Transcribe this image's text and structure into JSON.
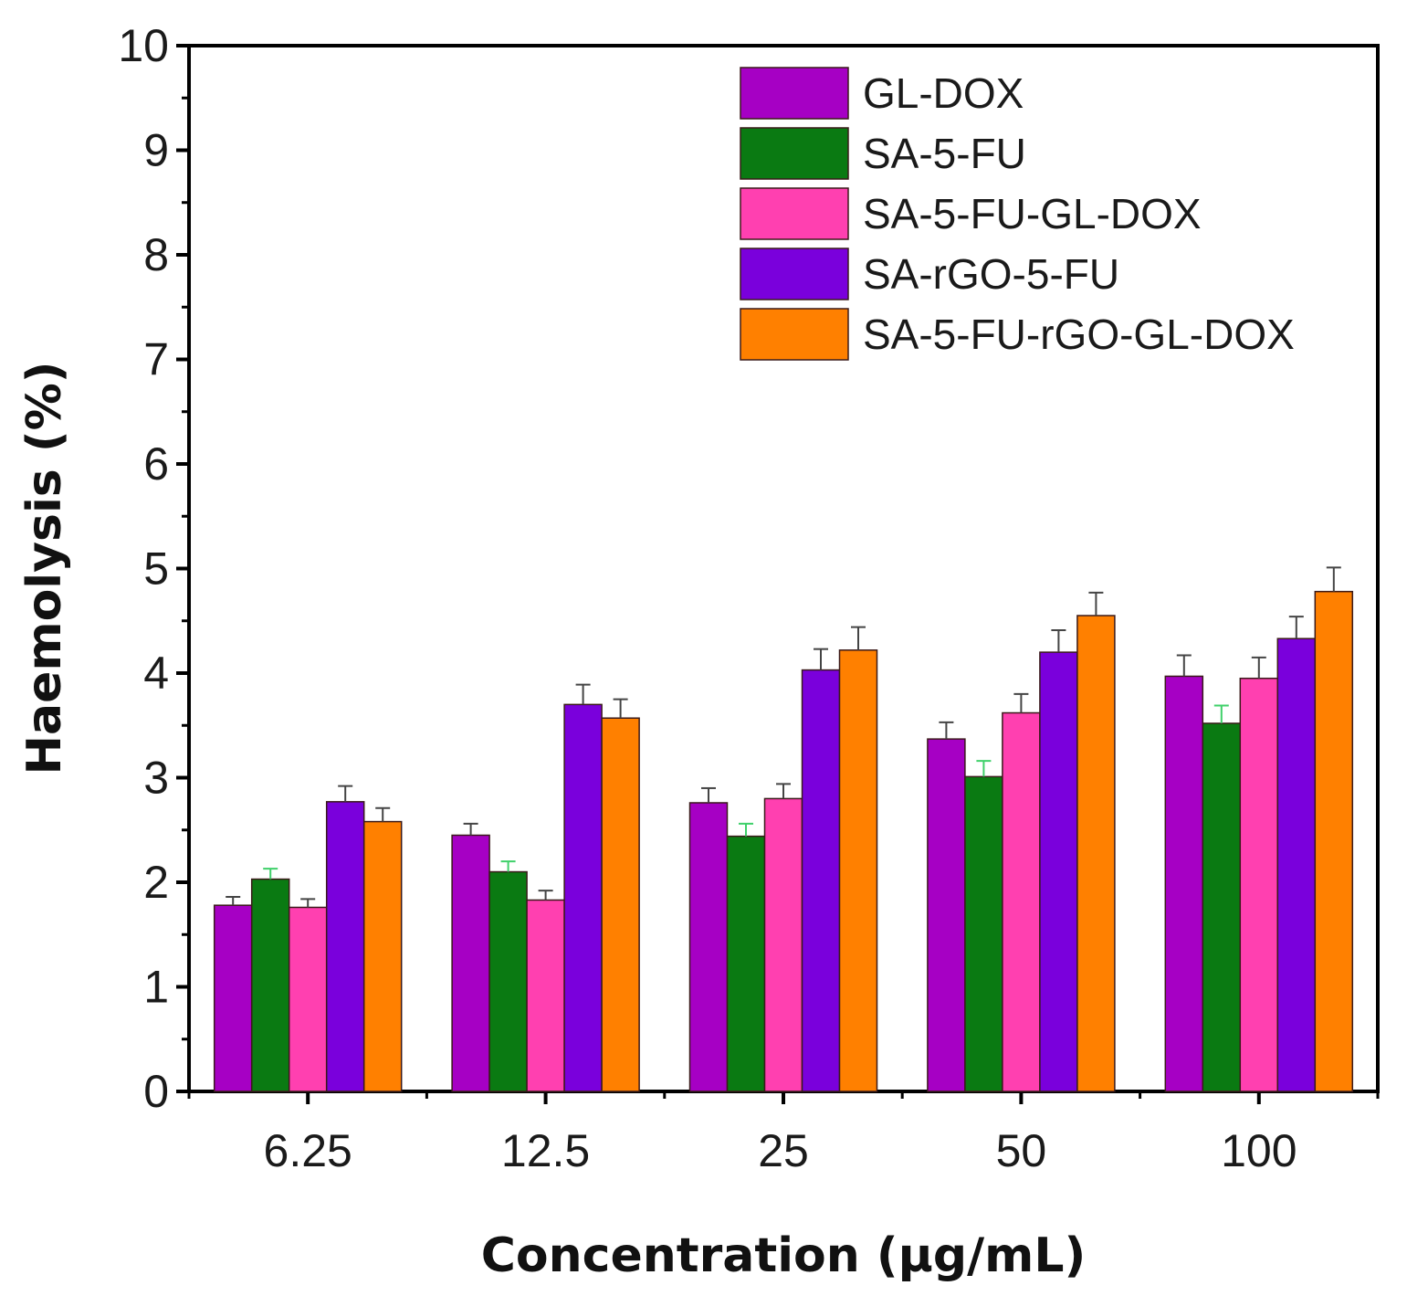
{
  "chart_data": {
    "type": "bar",
    "title": "",
    "xlabel": "Concentration (μg/mL)",
    "ylabel": "Haemolysis (%)",
    "ylim": [
      0,
      10
    ],
    "yticks": [
      "0",
      "1",
      "2",
      "3",
      "4",
      "5",
      "6",
      "7",
      "8",
      "9",
      "10"
    ],
    "categories": [
      "6.25",
      "12.5",
      "25",
      "50",
      "100"
    ],
    "legend_position": "top-right",
    "series": [
      {
        "name": "GL-DOX",
        "color": "#a600c4",
        "values": [
          1.78,
          2.45,
          2.76,
          3.37,
          3.97
        ],
        "errors": [
          0.08,
          0.11,
          0.14,
          0.16,
          0.2
        ]
      },
      {
        "name": "SA-5-FU",
        "color": "#0a7a12",
        "values": [
          2.03,
          2.1,
          2.44,
          3.01,
          3.52
        ],
        "errors": [
          0.1,
          0.1,
          0.12,
          0.15,
          0.17
        ]
      },
      {
        "name": "SA-5-FU-GL-DOX",
        "color": "#ff40b0",
        "values": [
          1.76,
          1.83,
          2.8,
          3.62,
          3.95
        ],
        "errors": [
          0.08,
          0.09,
          0.14,
          0.18,
          0.2
        ]
      },
      {
        "name": "SA-rGO-5-FU",
        "color": "#7a00dc",
        "values": [
          2.77,
          3.7,
          4.03,
          4.2,
          4.33
        ],
        "errors": [
          0.15,
          0.19,
          0.2,
          0.21,
          0.21
        ]
      },
      {
        "name": "SA-5-FU-rGO-GL-DOX",
        "color": "#ff8000",
        "values": [
          2.58,
          3.57,
          4.22,
          4.55,
          4.78
        ],
        "errors": [
          0.13,
          0.18,
          0.22,
          0.22,
          0.23
        ]
      }
    ]
  }
}
